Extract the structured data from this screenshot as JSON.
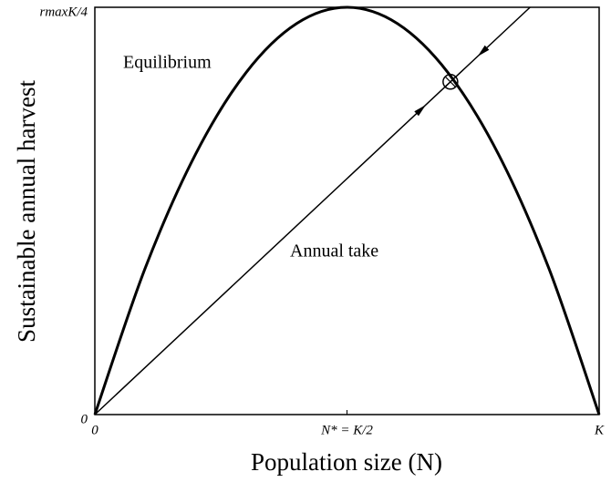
{
  "chart_data": {
    "type": "line",
    "xlabel": "Population size (N)",
    "ylabel": "Sustainable annual harvest",
    "xlim": [
      0,
      1
    ],
    "ylim": [
      0,
      1
    ],
    "xticks": [
      0,
      {
        "value": 0.5,
        "label": "N* = K/2"
      },
      {
        "value": 1,
        "label": "K"
      }
    ],
    "yticks": [
      0,
      {
        "value": 1,
        "label": "rmaxK/4"
      }
    ],
    "series": [
      {
        "name": "Equilibrium",
        "color": "#000000",
        "x": [
          0,
          0.1,
          0.2,
          0.3,
          0.4,
          0.5,
          0.6,
          0.7,
          0.8,
          0.9,
          1
        ],
        "values": [
          0,
          0.36,
          0.64,
          0.84,
          0.96,
          1,
          0.96,
          0.84,
          0.64,
          0.36,
          0
        ]
      },
      {
        "name": "Annual take",
        "color": "#000000",
        "x": [
          0,
          0.863
        ],
        "values": [
          0,
          1
        ]
      }
    ],
    "equilibrium_point": {
      "x": 0.705,
      "y": 0.817
    }
  }
}
